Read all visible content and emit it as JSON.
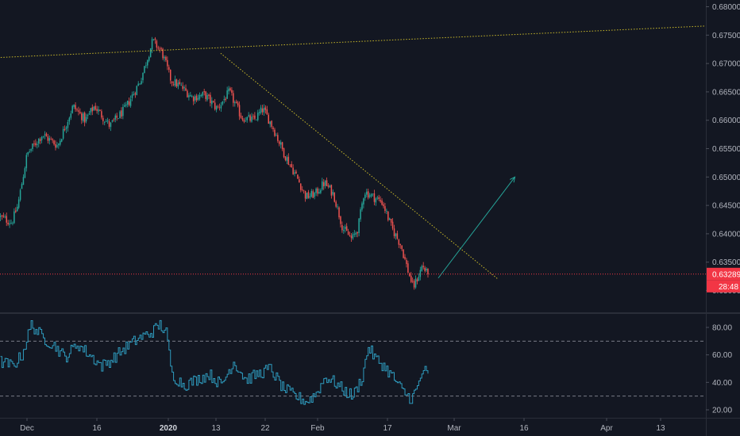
{
  "chart_data": [
    {
      "type": "candlestick",
      "panel": "price",
      "ylim": [
        0.63,
        0.68
      ],
      "y_ticks": [
        0.63,
        0.635,
        0.64,
        0.645,
        0.65,
        0.655,
        0.66,
        0.665,
        0.67,
        0.675,
        0.68
      ],
      "y_tick_labels": [
        "0.63000",
        "0.63500",
        "0.64000",
        "0.64500",
        "0.65000",
        "0.65500",
        "0.66000",
        "0.66500",
        "0.67000",
        "0.67500",
        "0.68000"
      ],
      "x_labels": [
        "Dec",
        "16",
        "2020",
        "13",
        "22",
        "Feb",
        "17",
        "Mar",
        "16",
        "Apr",
        "13"
      ],
      "x_labels_bold": [
        "2020"
      ],
      "path_anchors": [
        {
          "bar": 0,
          "price": 0.643
        },
        {
          "bar": 8,
          "price": 0.642
        },
        {
          "bar": 12,
          "price": 0.645
        },
        {
          "bar": 18,
          "price": 0.654
        },
        {
          "bar": 28,
          "price": 0.6575
        },
        {
          "bar": 38,
          "price": 0.6555
        },
        {
          "bar": 48,
          "price": 0.6625
        },
        {
          "bar": 56,
          "price": 0.66
        },
        {
          "bar": 62,
          "price": 0.6625
        },
        {
          "bar": 72,
          "price": 0.659
        },
        {
          "bar": 82,
          "price": 0.662
        },
        {
          "bar": 92,
          "price": 0.667
        },
        {
          "bar": 100,
          "price": 0.674
        },
        {
          "bar": 106,
          "price": 0.672
        },
        {
          "bar": 112,
          "price": 0.667
        },
        {
          "bar": 118,
          "price": 0.666
        },
        {
          "bar": 126,
          "price": 0.664
        },
        {
          "bar": 134,
          "price": 0.6645
        },
        {
          "bar": 142,
          "price": 0.662
        },
        {
          "bar": 150,
          "price": 0.665
        },
        {
          "bar": 158,
          "price": 0.6605
        },
        {
          "bar": 166,
          "price": 0.66
        },
        {
          "bar": 172,
          "price": 0.662
        },
        {
          "bar": 178,
          "price": 0.659
        },
        {
          "bar": 186,
          "price": 0.654
        },
        {
          "bar": 194,
          "price": 0.65
        },
        {
          "bar": 200,
          "price": 0.6465
        },
        {
          "bar": 206,
          "price": 0.647
        },
        {
          "bar": 212,
          "price": 0.649
        },
        {
          "bar": 218,
          "price": 0.647
        },
        {
          "bar": 224,
          "price": 0.641
        },
        {
          "bar": 230,
          "price": 0.639
        },
        {
          "bar": 234,
          "price": 0.641
        },
        {
          "bar": 238,
          "price": 0.6475
        },
        {
          "bar": 244,
          "price": 0.6465
        },
        {
          "bar": 250,
          "price": 0.6455
        },
        {
          "bar": 256,
          "price": 0.641
        },
        {
          "bar": 262,
          "price": 0.638
        },
        {
          "bar": 266,
          "price": 0.634
        },
        {
          "bar": 270,
          "price": 0.6305
        },
        {
          "bar": 274,
          "price": 0.633
        },
        {
          "bar": 276,
          "price": 0.6345
        },
        {
          "bar": 279,
          "price": 0.6329
        }
      ],
      "last_price": 0.63289,
      "last_price_label": "0.63289",
      "countdown_label": "28:48",
      "colors": {
        "up": "#26a69a",
        "down": "#ef5350",
        "background": "#131722",
        "grid": "#363a45",
        "text": "#b2b5be",
        "price_line": "#f23645"
      },
      "drawings": [
        {
          "name": "upper-trendline",
          "kind": "trendline",
          "style": "dotted",
          "color": "#c9b92a",
          "from": {
            "bar": -5,
            "price": 0.671
          },
          "to": {
            "bar": 460,
            "price": 0.6766
          }
        },
        {
          "name": "descending-trendline",
          "kind": "trendline",
          "style": "dotted",
          "color": "#c9b92a",
          "from": {
            "bar": 144,
            "price": 0.6718
          },
          "to": {
            "bar": 325,
            "price": 0.632
          }
        },
        {
          "name": "projection-arrow",
          "kind": "arrow",
          "color": "#26a69a",
          "from": {
            "bar": 286,
            "price": 0.6322
          },
          "to": {
            "bar": 336,
            "price": 0.65
          }
        }
      ]
    },
    {
      "type": "line",
      "panel": "oscillator",
      "ylim": [
        15,
        90
      ],
      "y_ticks": [
        20,
        40,
        60,
        80
      ],
      "y_tick_labels": [
        "20.00",
        "40.00",
        "60.00",
        "80.00"
      ],
      "levels": [
        70,
        30
      ],
      "color": "#2e9bbe",
      "path_anchors": [
        {
          "bar": 0,
          "value": 55
        },
        {
          "bar": 8,
          "value": 52
        },
        {
          "bar": 14,
          "value": 60
        },
        {
          "bar": 20,
          "value": 82
        },
        {
          "bar": 28,
          "value": 72
        },
        {
          "bar": 36,
          "value": 66
        },
        {
          "bar": 42,
          "value": 58
        },
        {
          "bar": 50,
          "value": 68
        },
        {
          "bar": 58,
          "value": 60
        },
        {
          "bar": 66,
          "value": 52
        },
        {
          "bar": 72,
          "value": 56
        },
        {
          "bar": 80,
          "value": 64
        },
        {
          "bar": 90,
          "value": 72
        },
        {
          "bar": 98,
          "value": 76
        },
        {
          "bar": 104,
          "value": 82
        },
        {
          "bar": 108,
          "value": 76
        },
        {
          "bar": 112,
          "value": 45
        },
        {
          "bar": 120,
          "value": 38
        },
        {
          "bar": 128,
          "value": 42
        },
        {
          "bar": 136,
          "value": 46
        },
        {
          "bar": 144,
          "value": 38
        },
        {
          "bar": 152,
          "value": 55
        },
        {
          "bar": 160,
          "value": 42
        },
        {
          "bar": 168,
          "value": 46
        },
        {
          "bar": 176,
          "value": 50
        },
        {
          "bar": 184,
          "value": 36
        },
        {
          "bar": 192,
          "value": 30
        },
        {
          "bar": 200,
          "value": 26
        },
        {
          "bar": 206,
          "value": 32
        },
        {
          "bar": 212,
          "value": 44
        },
        {
          "bar": 218,
          "value": 40
        },
        {
          "bar": 224,
          "value": 34
        },
        {
          "bar": 230,
          "value": 30
        },
        {
          "bar": 236,
          "value": 44
        },
        {
          "bar": 240,
          "value": 66
        },
        {
          "bar": 244,
          "value": 58
        },
        {
          "bar": 250,
          "value": 52
        },
        {
          "bar": 256,
          "value": 44
        },
        {
          "bar": 262,
          "value": 34
        },
        {
          "bar": 268,
          "value": 28
        },
        {
          "bar": 272,
          "value": 36
        },
        {
          "bar": 276,
          "value": 50
        },
        {
          "bar": 279,
          "value": 44
        }
      ]
    }
  ]
}
